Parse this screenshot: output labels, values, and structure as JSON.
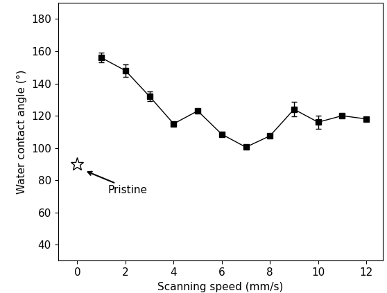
{
  "chart_data": {
    "type": "line",
    "x_label": "Scanning speed (mm/s)",
    "y_label": "Water contact angle (°)",
    "xlim": [
      -0.8,
      12.7
    ],
    "xticks": [
      0,
      2,
      4,
      6,
      8,
      10,
      12
    ],
    "ylim": [
      30,
      190
    ],
    "yticks": [
      40,
      60,
      80,
      100,
      120,
      140,
      160,
      180
    ],
    "grid": false,
    "series": [
      {
        "x": [
          1,
          2,
          3,
          4,
          5,
          6,
          7,
          8,
          9,
          10,
          11,
          12
        ],
        "values": [
          156,
          148,
          132,
          115,
          123,
          108.5,
          100.5,
          107.5,
          124,
          116,
          120,
          118
        ],
        "errors": [
          3,
          4,
          3,
          1,
          1,
          1,
          1,
          1,
          4.5,
          4,
          1,
          1
        ],
        "color": "#000000",
        "marker": "square",
        "line_style": "solid"
      },
      {
        "x": [
          0
        ],
        "values": [
          90
        ],
        "color": "#000000",
        "marker": "star",
        "line_style": "none"
      }
    ],
    "annotations": [
      "Pristine"
    ]
  }
}
